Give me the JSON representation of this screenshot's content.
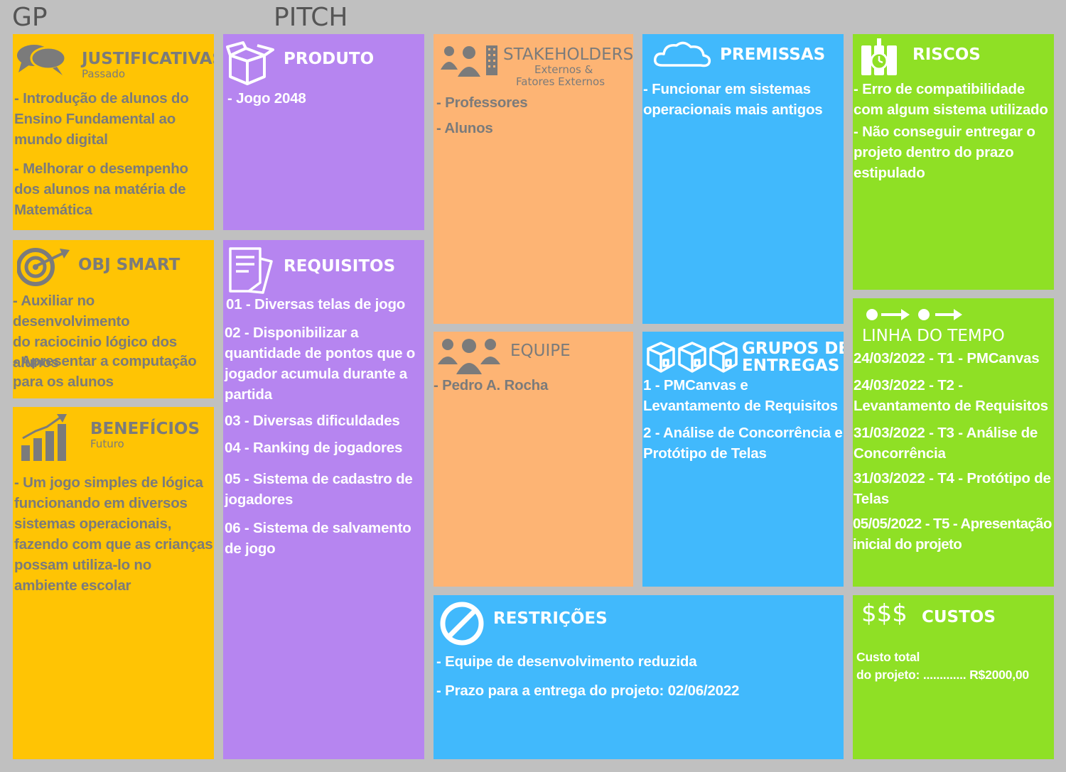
{
  "header": {
    "left_label": "GP",
    "right_label": "PITCH"
  },
  "colors": {
    "yellow": "#ffc404",
    "purple": "#b685f0",
    "orange": "#fdb474",
    "blue": "#41b9fc",
    "green": "#8fe025",
    "background": "#c0c0c0"
  },
  "justificativas": {
    "icon": "speech-bubbles-icon",
    "title": "JUSTIFICATIVAS",
    "subtitle": "Passado",
    "items": [
      " - Introdução de alunos do\nEnsino Fundamental ao\nmundo digital",
      " - Melhorar o desempenho\ndos alunos na matéria de\nMatemática"
    ]
  },
  "obj_smart": {
    "icon": "target-icon",
    "title": "OBJ SMART",
    "items": [
      " - Auxiliar no desenvolvimento\ndo raciocinio lógico dos\nalunos",
      " - Apresentar a computação\npara os alunos"
    ]
  },
  "beneficios": {
    "icon": "bar-chart-icon",
    "title": "BENEFÍCIOS",
    "subtitle": "Futuro",
    "items": [
      " - Um jogo simples de lógica\nfuncionando em diversos\nsistemas operacionais,\nfazendo com que as crianças\npossam utiliza-lo no\nambiente escolar"
    ]
  },
  "produto": {
    "icon": "box-icon",
    "title": "PRODUTO",
    "items": [
      "- Jogo 2048"
    ]
  },
  "requisitos": {
    "icon": "document-icon",
    "title": "REQUISITOS",
    "items": [
      " 01 - Diversas telas de jogo",
      " 02 - Disponibilizar a\nquantidade de pontos que o\njogador acumula durante a\npartida",
      " 03 - Diversas dificuldades",
      " 04 - Ranking de jogadores",
      " 05 - Sistema de cadastro de\njogadores",
      " 06 - Sistema de salvamento\nde jogo"
    ]
  },
  "stakeholders": {
    "icon": "people-building-icon",
    "title": "STAKEHOLDERS",
    "subtitle_line1": "Externos &",
    "subtitle_line2": "Fatores Externos",
    "items": [
      "- Professores",
      "- Alunos"
    ]
  },
  "equipe": {
    "icon": "team-icon",
    "title": "EQUIPE",
    "items": [
      "- Pedro A. Rocha"
    ]
  },
  "premissas": {
    "icon": "cloud-icon",
    "title": "PREMISSAS",
    "items": [
      " - Funcionar em sistemas\noperacionais mais antigos"
    ]
  },
  "grupos_entregas": {
    "icon": "packages-icon",
    "title_line1": "GRUPOS DE",
    "title_line2": "ENTREGAS",
    "items": [
      " 1 - PMCanvas e\nLevantamento de Requisitos",
      " 2 - Análise de Concorrência e\nProtótipo de Telas"
    ]
  },
  "riscos": {
    "icon": "dynamite-icon",
    "title": "RISCOS",
    "items": [
      " - Erro de compatibilidade\ncom algum sistema utilizado",
      " - Não conseguir entregar o\nprojeto dentro do prazo\nestipulado"
    ]
  },
  "linha_do_tempo": {
    "icon": "timeline-arrows-icon",
    "title": "LINHA DO TEMPO",
    "items": [
      " 24/03/2022 - T1 - PMCanvas",
      " 24/03/2022 - T2 -\nLevantamento de Requisitos",
      " 31/03/2022 - T3 - Análise de\nConcorrência",
      " 31/03/2022 - T4 - Protótipo de\nTelas",
      "05/05/2022 - T5 - Apresentação\ninicial do projeto"
    ]
  },
  "restricoes": {
    "icon": "prohibited-icon",
    "title": "RESTRIÇÕES",
    "items": [
      "- Equipe de desenvolvimento reduzida",
      "- Prazo para a entrega do projeto: 02/06/2022"
    ]
  },
  "custos": {
    "icon": "dollar-signs-icon",
    "icon_text": "$$$",
    "title": "CUSTOS",
    "line1": "Custo total",
    "line2": "do projeto: ............. R$2000,00"
  }
}
